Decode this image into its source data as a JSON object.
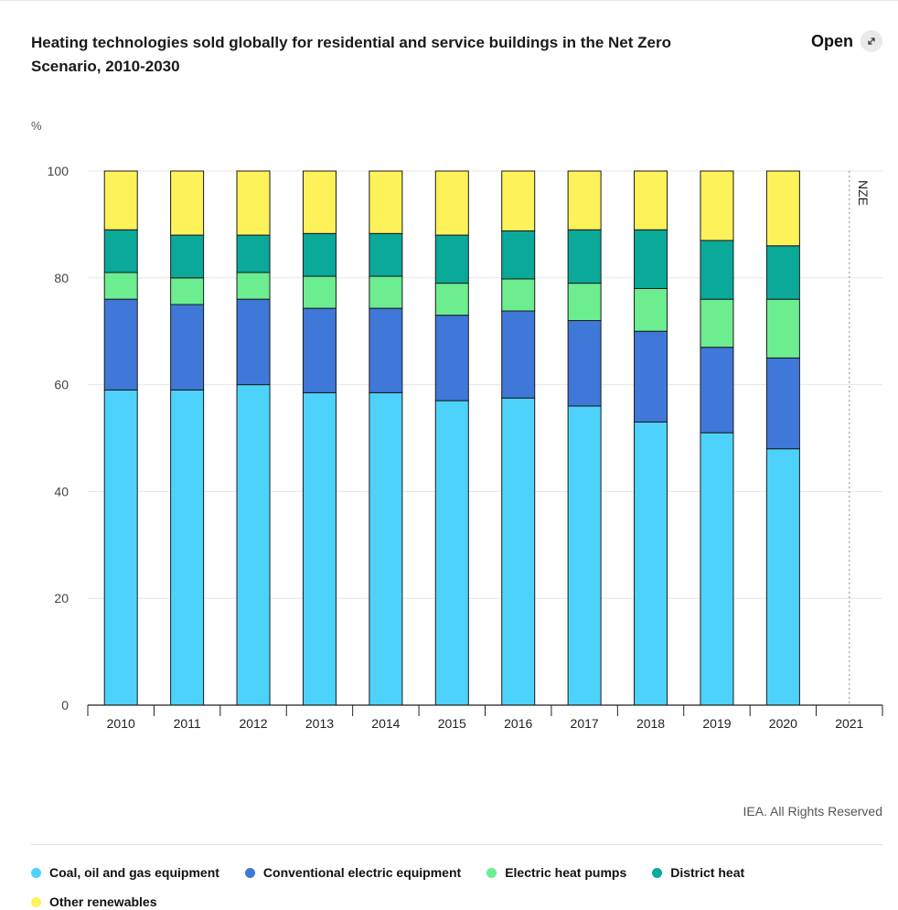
{
  "header": {
    "title": "Heating technologies sold globally for residential and service buildings in the Net Zero Scenario, 2010-2030",
    "open_label": "Open",
    "open_icon": "expand-icon"
  },
  "footer": {
    "credit": "IEA. All Rights Reserved"
  },
  "chart_data": {
    "type": "bar",
    "stacked": true,
    "title": "Heating technologies sold globally for residential and service buildings in the Net Zero Scenario, 2010-2030",
    "ylabel": "%",
    "xlabel": "",
    "ylim": [
      0,
      100
    ],
    "yticks": [
      0,
      20,
      40,
      60,
      80,
      100
    ],
    "grid": true,
    "legend_position": "bottom",
    "categories": [
      "2010",
      "2011",
      "2012",
      "2013",
      "2014",
      "2015",
      "2016",
      "2017",
      "2018",
      "2019",
      "2020",
      "2021"
    ],
    "series": [
      {
        "name": "Coal, oil and gas equipment",
        "color": "#4dd3fb",
        "values": [
          59,
          59,
          60,
          58.5,
          58.5,
          57,
          57.5,
          56,
          53,
          51,
          48,
          null
        ]
      },
      {
        "name": "Conventional electric equipment",
        "color": "#3f78d8",
        "values": [
          17,
          16,
          16,
          15.8,
          15.8,
          16,
          16.3,
          16,
          17,
          16,
          17,
          null
        ]
      },
      {
        "name": "Electric heat pumps",
        "color": "#6bed90",
        "values": [
          5,
          5,
          5,
          6,
          6,
          6,
          6,
          7,
          8,
          9,
          11,
          null
        ]
      },
      {
        "name": "District heat",
        "color": "#0aa99a",
        "values": [
          8,
          8,
          7,
          8,
          8,
          9,
          9,
          10,
          11,
          11,
          10,
          null
        ]
      },
      {
        "name": "Other renewables",
        "color": "#fdf259",
        "values": [
          11,
          12,
          12,
          11.7,
          11.7,
          12,
          11.2,
          11,
          11,
          13,
          14,
          null
        ]
      }
    ],
    "annotations": [
      {
        "text": "NZE",
        "x": "2021",
        "style": "vertical dotted line"
      }
    ]
  }
}
